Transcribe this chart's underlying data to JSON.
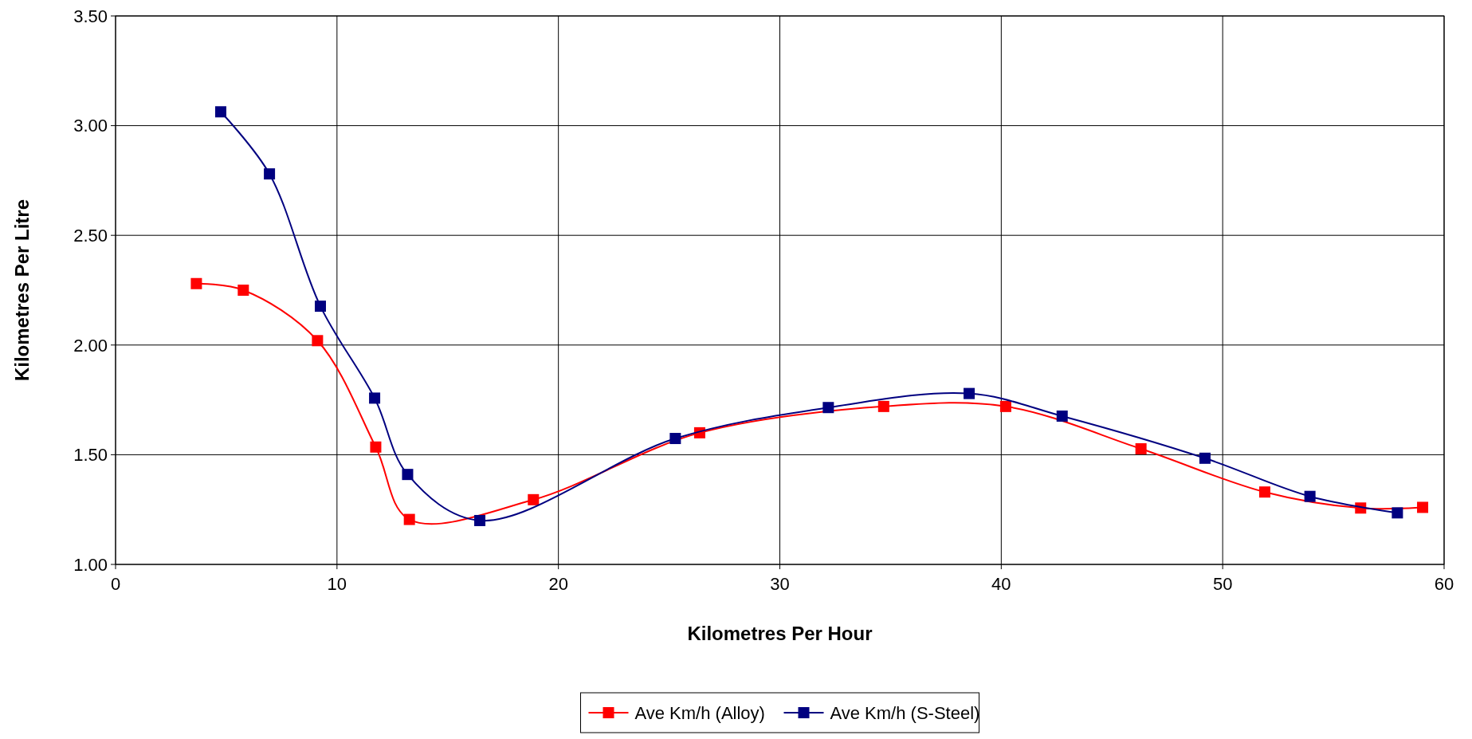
{
  "chart_data": {
    "type": "line",
    "xlabel": "Kilometres Per Hour",
    "ylabel": "Kilometres Per Litre",
    "xlim": [
      0,
      60
    ],
    "xticks": [
      0,
      10,
      20,
      30,
      40,
      50,
      60
    ],
    "ylim": [
      1,
      3.5
    ],
    "yticks": [
      {
        "value": 1,
        "label": "1.00"
      },
      {
        "value": 1.5,
        "label": "1.50"
      },
      {
        "value": 2,
        "label": "2.00"
      },
      {
        "value": 2.5,
        "label": "2.50"
      },
      {
        "value": 3,
        "label": "3.00"
      },
      {
        "value": 3.5,
        "label": "3.50"
      }
    ],
    "grid": true,
    "legend": "bottom",
    "marker": "square",
    "line_style": "solid",
    "series": [
      {
        "name": "Ave Km/h (Alloy)",
        "color": "#ff0000",
        "x": [
          3.65,
          5.77,
          9.12,
          11.75,
          13.27,
          18.87,
          26.38,
          34.69,
          40.2,
          46.31,
          51.9,
          56.23,
          59.03
        ],
        "values": [
          2.28,
          2.25,
          2.02,
          1.535,
          1.205,
          1.295,
          1.6,
          1.72,
          1.72,
          1.527,
          1.33,
          1.257,
          1.26
        ]
      },
      {
        "name": "Ave Km/h (S-Steel)",
        "color": "#000080",
        "x": [
          4.75,
          6.95,
          9.25,
          11.7,
          13.19,
          16.45,
          25.28,
          32.19,
          38.55,
          42.75,
          49.2,
          53.94,
          57.89
        ],
        "values": [
          3.063,
          2.78,
          2.177,
          1.758,
          1.41,
          1.2,
          1.574,
          1.715,
          1.779,
          1.676,
          1.484,
          1.31,
          1.235
        ]
      }
    ]
  }
}
